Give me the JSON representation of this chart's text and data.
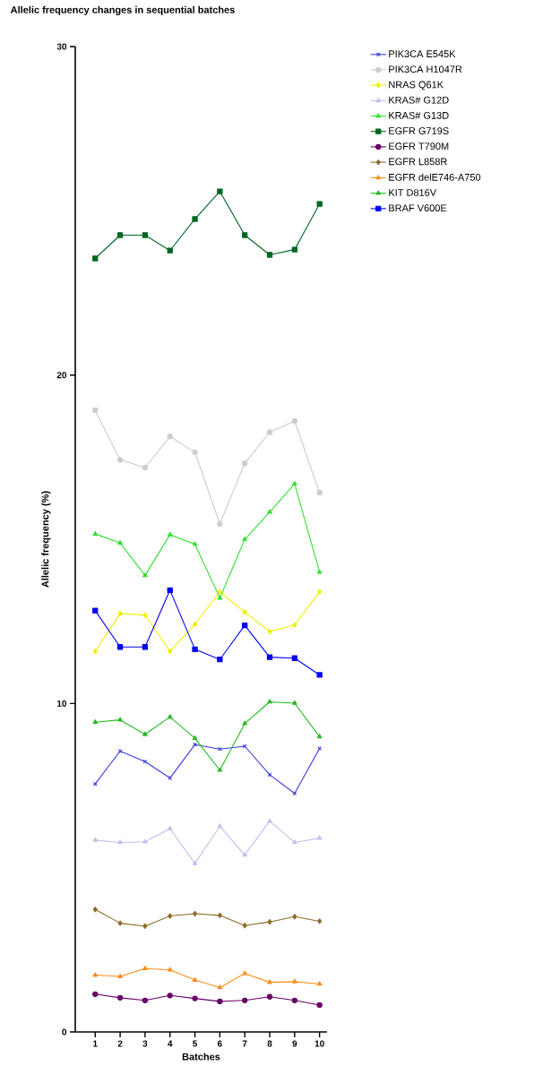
{
  "chart_data": {
    "type": "line",
    "title": "Allelic frequency changes in sequential batches",
    "xlabel": "Batches",
    "ylabel": "Allelic frequency (%)",
    "x": [
      1,
      2,
      3,
      4,
      5,
      6,
      7,
      8,
      9,
      10
    ],
    "xlim": [
      0.2,
      10.3
    ],
    "xticks": [
      1,
      2,
      3,
      4,
      5,
      6,
      7,
      8,
      9,
      10
    ],
    "ylim": [
      0,
      30
    ],
    "yticks": [
      0,
      10,
      20,
      30
    ],
    "legend": "top right",
    "line_style": "solid",
    "series": [
      {
        "name": "PIK3CA E545K",
        "color": "#3a3adf",
        "marker": "cross",
        "values": [
          7.55,
          8.55,
          8.23,
          7.73,
          8.75,
          8.61,
          8.7,
          7.83,
          7.26,
          8.63
        ]
      },
      {
        "name": "PIK3CA H1047R",
        "color": "#cccccc",
        "marker": "circle",
        "values": [
          18.93,
          17.42,
          17.18,
          18.13,
          17.65,
          15.47,
          17.31,
          18.26,
          18.6,
          16.42
        ]
      },
      {
        "name": "NRAS Q61K",
        "color": "#f0f000",
        "marker": "diamond",
        "values": [
          11.59,
          12.74,
          12.69,
          11.59,
          12.41,
          13.4,
          12.78,
          12.19,
          12.39,
          13.4
        ]
      },
      {
        "name": "KRAS# G12D",
        "color": "#c0c0f0",
        "marker": "triangle",
        "values": [
          5.84,
          5.77,
          5.79,
          6.19,
          5.13,
          6.26,
          5.39,
          6.42,
          5.77,
          5.9
        ]
      },
      {
        "name": "KRAS# G13D",
        "color": "#33e033",
        "marker": "triangle",
        "values": [
          15.16,
          14.89,
          13.9,
          15.14,
          14.85,
          13.21,
          15.0,
          15.83,
          16.69,
          14.0
        ]
      },
      {
        "name": "EGFR G719S",
        "color": "#006622",
        "marker": "square",
        "values": [
          23.55,
          24.26,
          24.26,
          23.79,
          24.75,
          25.59,
          24.26,
          23.66,
          23.82,
          25.21
        ]
      },
      {
        "name": "EGFR T790M",
        "color": "#660066",
        "marker": "circle",
        "values": [
          1.15,
          1.04,
          0.96,
          1.11,
          1.02,
          0.93,
          0.96,
          1.07,
          0.96,
          0.82
        ]
      },
      {
        "name": "EGFR L858R",
        "color": "#8b6b2a",
        "marker": "diamond",
        "values": [
          3.73,
          3.31,
          3.22,
          3.53,
          3.6,
          3.55,
          3.24,
          3.35,
          3.51,
          3.37
        ]
      },
      {
        "name": "EGFR delE746-A750",
        "color": "#ff8c1a",
        "marker": "triangle",
        "values": [
          1.73,
          1.69,
          1.93,
          1.89,
          1.58,
          1.35,
          1.78,
          1.51,
          1.53,
          1.46
        ]
      },
      {
        "name": "KIT D816V",
        "color": "#22bb22",
        "marker": "triangle",
        "values": [
          9.43,
          9.5,
          9.06,
          9.59,
          8.94,
          7.97,
          9.39,
          10.05,
          10.01,
          8.99
        ]
      },
      {
        "name": "BRAF V600E",
        "color": "#0000ee",
        "marker": "square",
        "values": [
          12.83,
          11.72,
          11.72,
          13.45,
          11.65,
          11.34,
          12.38,
          11.41,
          11.38,
          10.87
        ]
      }
    ]
  }
}
